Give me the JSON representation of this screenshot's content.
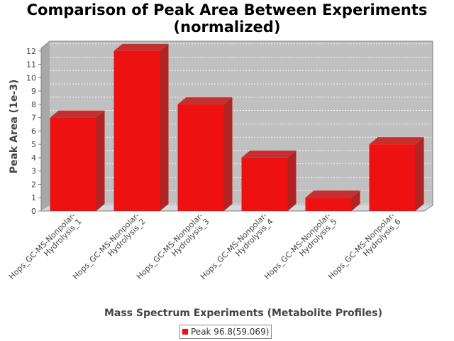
{
  "chart_data": {
    "type": "bar",
    "title_lines": [
      "Comparison of Peak Area Between Experiments",
      "(normalized)"
    ],
    "xlabel": "Mass Spectrum Experiments (Metabolite Profiles)",
    "ylabel": "Peak Area (1e-3)",
    "categories": [
      [
        "Hops_GC-MS-Nonpolar-",
        "Hydrolysis_1"
      ],
      [
        "Hops_GC-MS-Nonpolar-",
        "Hydrolysis_2"
      ],
      [
        "Hops_GC-MS-Nonpolar-",
        "Hydrolysis_3"
      ],
      [
        "Hops_GC-MS-Nonpolar-",
        "Hydrolysis_4"
      ],
      [
        "Hops_GC-MS-Nonpolar-",
        "Hydrolysis_5"
      ],
      [
        "Hops_GC-MS-Nonpolar-",
        "Hydrolysis_6"
      ]
    ],
    "series": [
      {
        "name": "Peak 96.8(59.069)",
        "values": [
          7,
          12,
          8,
          4,
          1,
          5
        ],
        "color": "#ee1111"
      }
    ],
    "ylim": [
      0,
      12.2
    ],
    "yticks": [
      0,
      1,
      2,
      3,
      4,
      5,
      6,
      7,
      8,
      9,
      10,
      11,
      12
    ],
    "grid": true,
    "legend_position": "bottom",
    "plot_background": "#c0c0c0"
  }
}
